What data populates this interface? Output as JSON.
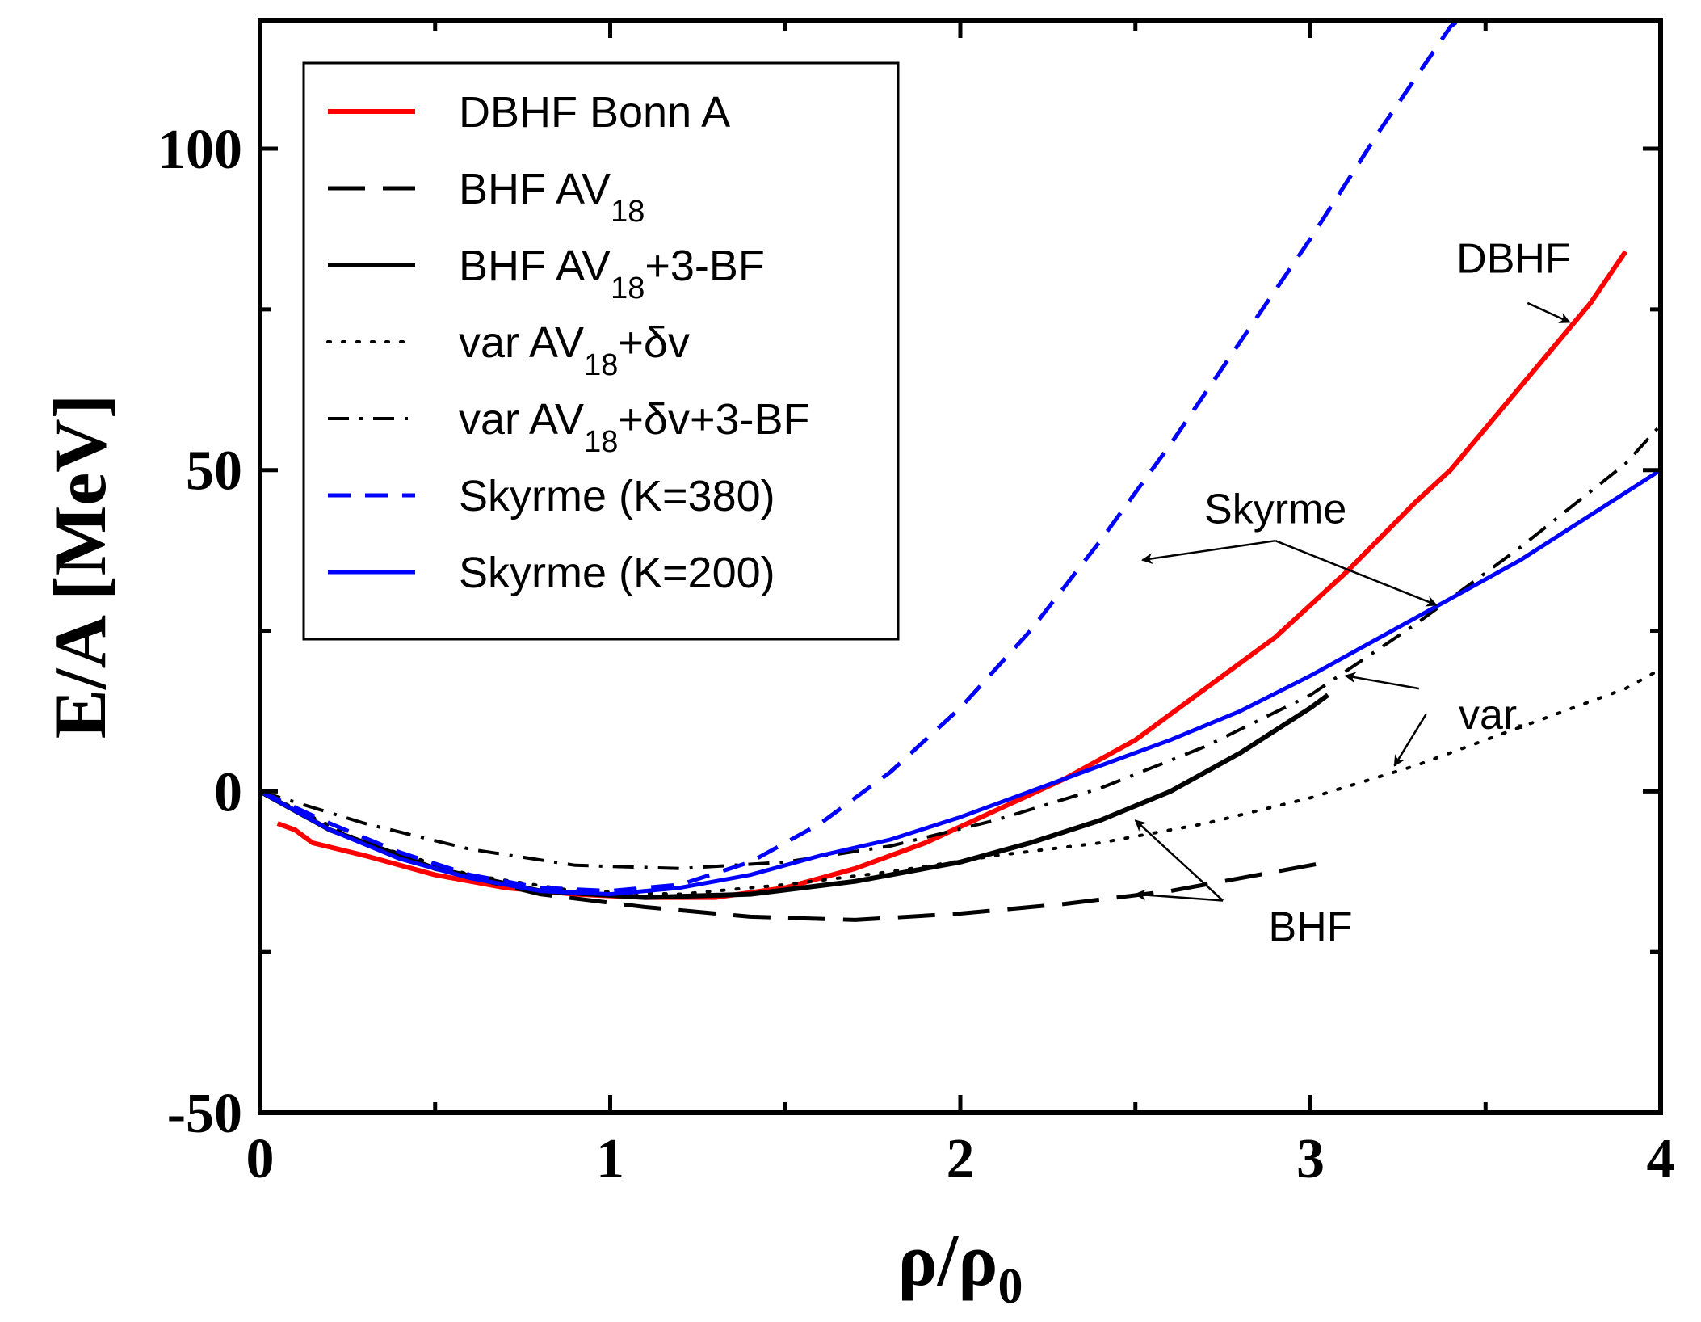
{
  "chart_data": {
    "type": "line",
    "xlabel": "ρ/ρ",
    "xlabel_sub": "0",
    "ylabel": "E/A [MeV]",
    "xlim": [
      0,
      4
    ],
    "ylim": [
      -50,
      120
    ],
    "x_ticks": [
      0,
      1,
      2,
      3,
      4
    ],
    "x_tick_labels": [
      "0",
      "1",
      "2",
      "3",
      "4"
    ],
    "y_ticks": [
      -50,
      0,
      50,
      100
    ],
    "y_tick_labels": [
      "-50",
      "0",
      "50",
      "100"
    ],
    "x_minor_ticks": [
      0.5,
      1.5,
      2.5,
      3.5
    ],
    "y_minor_ticks": [
      -25,
      25,
      75
    ],
    "grid": false,
    "legend_position": "top-left",
    "series": [
      {
        "name": "DBHF Bonn A",
        "legend_label": "DBHF Bonn A",
        "color": "#ff0000",
        "dash": "solid",
        "width": 6,
        "x": [
          0.05,
          0.1,
          0.15,
          0.3,
          0.5,
          0.7,
          0.9,
          1.1,
          1.3,
          1.5,
          1.7,
          1.9,
          2.1,
          2.3,
          2.5,
          2.7,
          2.9,
          3.1,
          3.3,
          3.4,
          3.6,
          3.8,
          3.9
        ],
        "y": [
          -5,
          -6,
          -8,
          -10,
          -13,
          -15,
          -16,
          -16.5,
          -16.5,
          -15,
          -12,
          -8,
          -3,
          2,
          8,
          16,
          24,
          34,
          45,
          50,
          63,
          76,
          84
        ]
      },
      {
        "name": "BHF AV18",
        "legend_label": "BHF AV",
        "legend_sub": "18",
        "legend_suffix": "",
        "color": "#000000",
        "dash": "long-dash",
        "width": 5,
        "x": [
          0.0,
          0.2,
          0.5,
          0.8,
          1.1,
          1.4,
          1.7,
          2.0,
          2.3,
          2.6,
          2.9,
          3.05
        ],
        "y": [
          0,
          -6,
          -12,
          -16,
          -18,
          -19.5,
          -20,
          -19,
          -17.5,
          -15.5,
          -12.5,
          -11
        ]
      },
      {
        "name": "BHF AV18+3-BF",
        "legend_label": "BHF AV",
        "legend_sub": "18",
        "legend_suffix": "+3-BF",
        "color": "#000000",
        "dash": "solid",
        "width": 6,
        "x": [
          0.0,
          0.2,
          0.5,
          0.8,
          1.1,
          1.4,
          1.7,
          2.0,
          2.2,
          2.4,
          2.6,
          2.8,
          3.0,
          3.05
        ],
        "y": [
          0,
          -6,
          -12,
          -15.5,
          -16.5,
          -16,
          -14,
          -11,
          -8,
          -4.5,
          0,
          6,
          13,
          15
        ]
      },
      {
        "name": "var AV18+δv",
        "legend_label": "var AV",
        "legend_sub": "18",
        "legend_suffix": "+δv",
        "color": "#000000",
        "dash": "dotted",
        "width": 4,
        "x": [
          0.0,
          0.3,
          0.6,
          0.9,
          1.2,
          1.5,
          1.8,
          2.1,
          2.4,
          2.7,
          3.0,
          3.3,
          3.6,
          3.9,
          4.0
        ],
        "y": [
          0,
          -8,
          -13,
          -15.5,
          -16,
          -14.5,
          -12.5,
          -10,
          -8,
          -5,
          -1,
          4,
          10,
          16,
          19
        ]
      },
      {
        "name": "var AV18+δv+3-BF",
        "legend_label": "var AV",
        "legend_sub": "18",
        "legend_suffix": "+δv+3-BF",
        "color": "#000000",
        "dash": "dash-dot",
        "width": 4,
        "x": [
          0.0,
          0.3,
          0.6,
          0.9,
          1.2,
          1.5,
          1.8,
          2.1,
          2.4,
          2.7,
          3.0,
          3.3,
          3.6,
          3.9,
          4.0
        ],
        "y": [
          0,
          -5,
          -9,
          -11.5,
          -12,
          -11,
          -8.5,
          -4.5,
          0.5,
          7,
          15,
          26,
          38,
          51,
          57
        ]
      },
      {
        "name": "Skyrme (K=380)",
        "legend_label": "Skyrme (K=380)",
        "color": "#0000ff",
        "dash": "dashed",
        "width": 5,
        "x": [
          0.0,
          0.2,
          0.4,
          0.6,
          0.8,
          1.0,
          1.2,
          1.4,
          1.6,
          1.8,
          2.0,
          2.2,
          2.4,
          2.6,
          2.8,
          3.0,
          3.2,
          3.4,
          3.45
        ],
        "y": [
          0,
          -5,
          -9.5,
          -13,
          -15,
          -15.5,
          -14.5,
          -11,
          -5,
          3,
          13,
          25,
          39,
          54,
          70,
          86,
          103,
          119,
          121
        ]
      },
      {
        "name": "Skyrme (K=200)",
        "legend_label": "Skyrme (K=200)",
        "color": "#0000ff",
        "dash": "solid",
        "width": 5,
        "x": [
          0.0,
          0.2,
          0.4,
          0.6,
          0.8,
          1.0,
          1.2,
          1.4,
          1.6,
          1.8,
          2.0,
          2.2,
          2.4,
          2.6,
          2.8,
          3.0,
          3.2,
          3.4,
          3.6,
          3.8,
          4.0
        ],
        "y": [
          0,
          -6,
          -10.5,
          -13.5,
          -15.5,
          -16,
          -15,
          -13,
          -10,
          -7.5,
          -4,
          0,
          4,
          8,
          12.5,
          18,
          24,
          30,
          36,
          43,
          50
        ]
      }
    ],
    "annotations": [
      {
        "text": "DBHF",
        "label_x": 3.58,
        "label_y": 83,
        "arrows": [
          {
            "from_x": 3.62,
            "from_y": 76,
            "to_x": 3.74,
            "to_y": 73
          }
        ]
      },
      {
        "text": "Skyrme",
        "label_x": 2.9,
        "label_y": 44,
        "arrows": [
          {
            "from_x": 2.9,
            "from_y": 39,
            "to_x": 2.52,
            "to_y": 36
          },
          {
            "from_x": 2.9,
            "from_y": 39,
            "to_x": 3.36,
            "to_y": 29
          }
        ]
      },
      {
        "text": "var.",
        "label_x": 3.52,
        "label_y": 12,
        "arrows": [
          {
            "from_x": 3.31,
            "from_y": 16,
            "to_x": 3.1,
            "to_y": 18
          },
          {
            "from_x": 3.33,
            "from_y": 12,
            "to_x": 3.24,
            "to_y": 4
          }
        ]
      },
      {
        "text": "BHF",
        "label_x": 3.0,
        "label_y": -21,
        "arrows": [
          {
            "from_x": 2.75,
            "from_y": -17,
            "to_x": 2.5,
            "to_y": -4.5
          },
          {
            "from_x": 2.75,
            "from_y": -17,
            "to_x": 2.5,
            "to_y": -16
          }
        ]
      }
    ]
  }
}
